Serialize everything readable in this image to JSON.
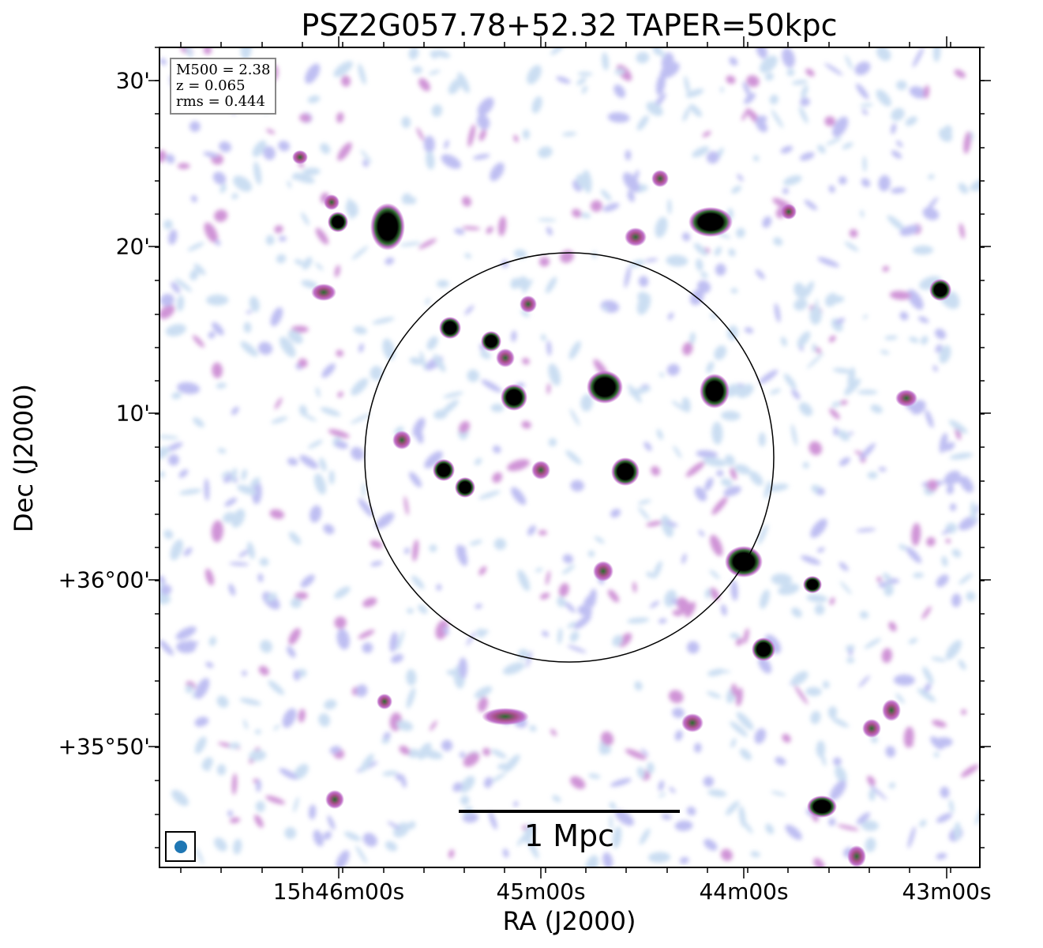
{
  "title": "PSZ2G057.78+52.32 TAPER=50kpc",
  "info": {
    "m500": "M500 = 2.38",
    "z": "z = 0.065",
    "rms": "rms = 0.444"
  },
  "axes": {
    "xlabel": "RA (J2000)",
    "ylabel": "Dec (J2000)",
    "xticks": [
      "15h46m00s",
      "45m00s",
      "44m00s",
      "43m00s"
    ],
    "yticks": [
      "30'",
      "20'",
      "10'",
      "+36°00'",
      "+35°50'"
    ]
  },
  "scalebar": {
    "label": "1 Mpc"
  },
  "colors": {
    "noise_light": "#b9d3ee",
    "noise_mid": "#a9a9ee",
    "noise_purple": "#c06fc9",
    "source_core": "#000000",
    "source_ring": "#2e6b2e",
    "beam": "#1f77b4"
  }
}
